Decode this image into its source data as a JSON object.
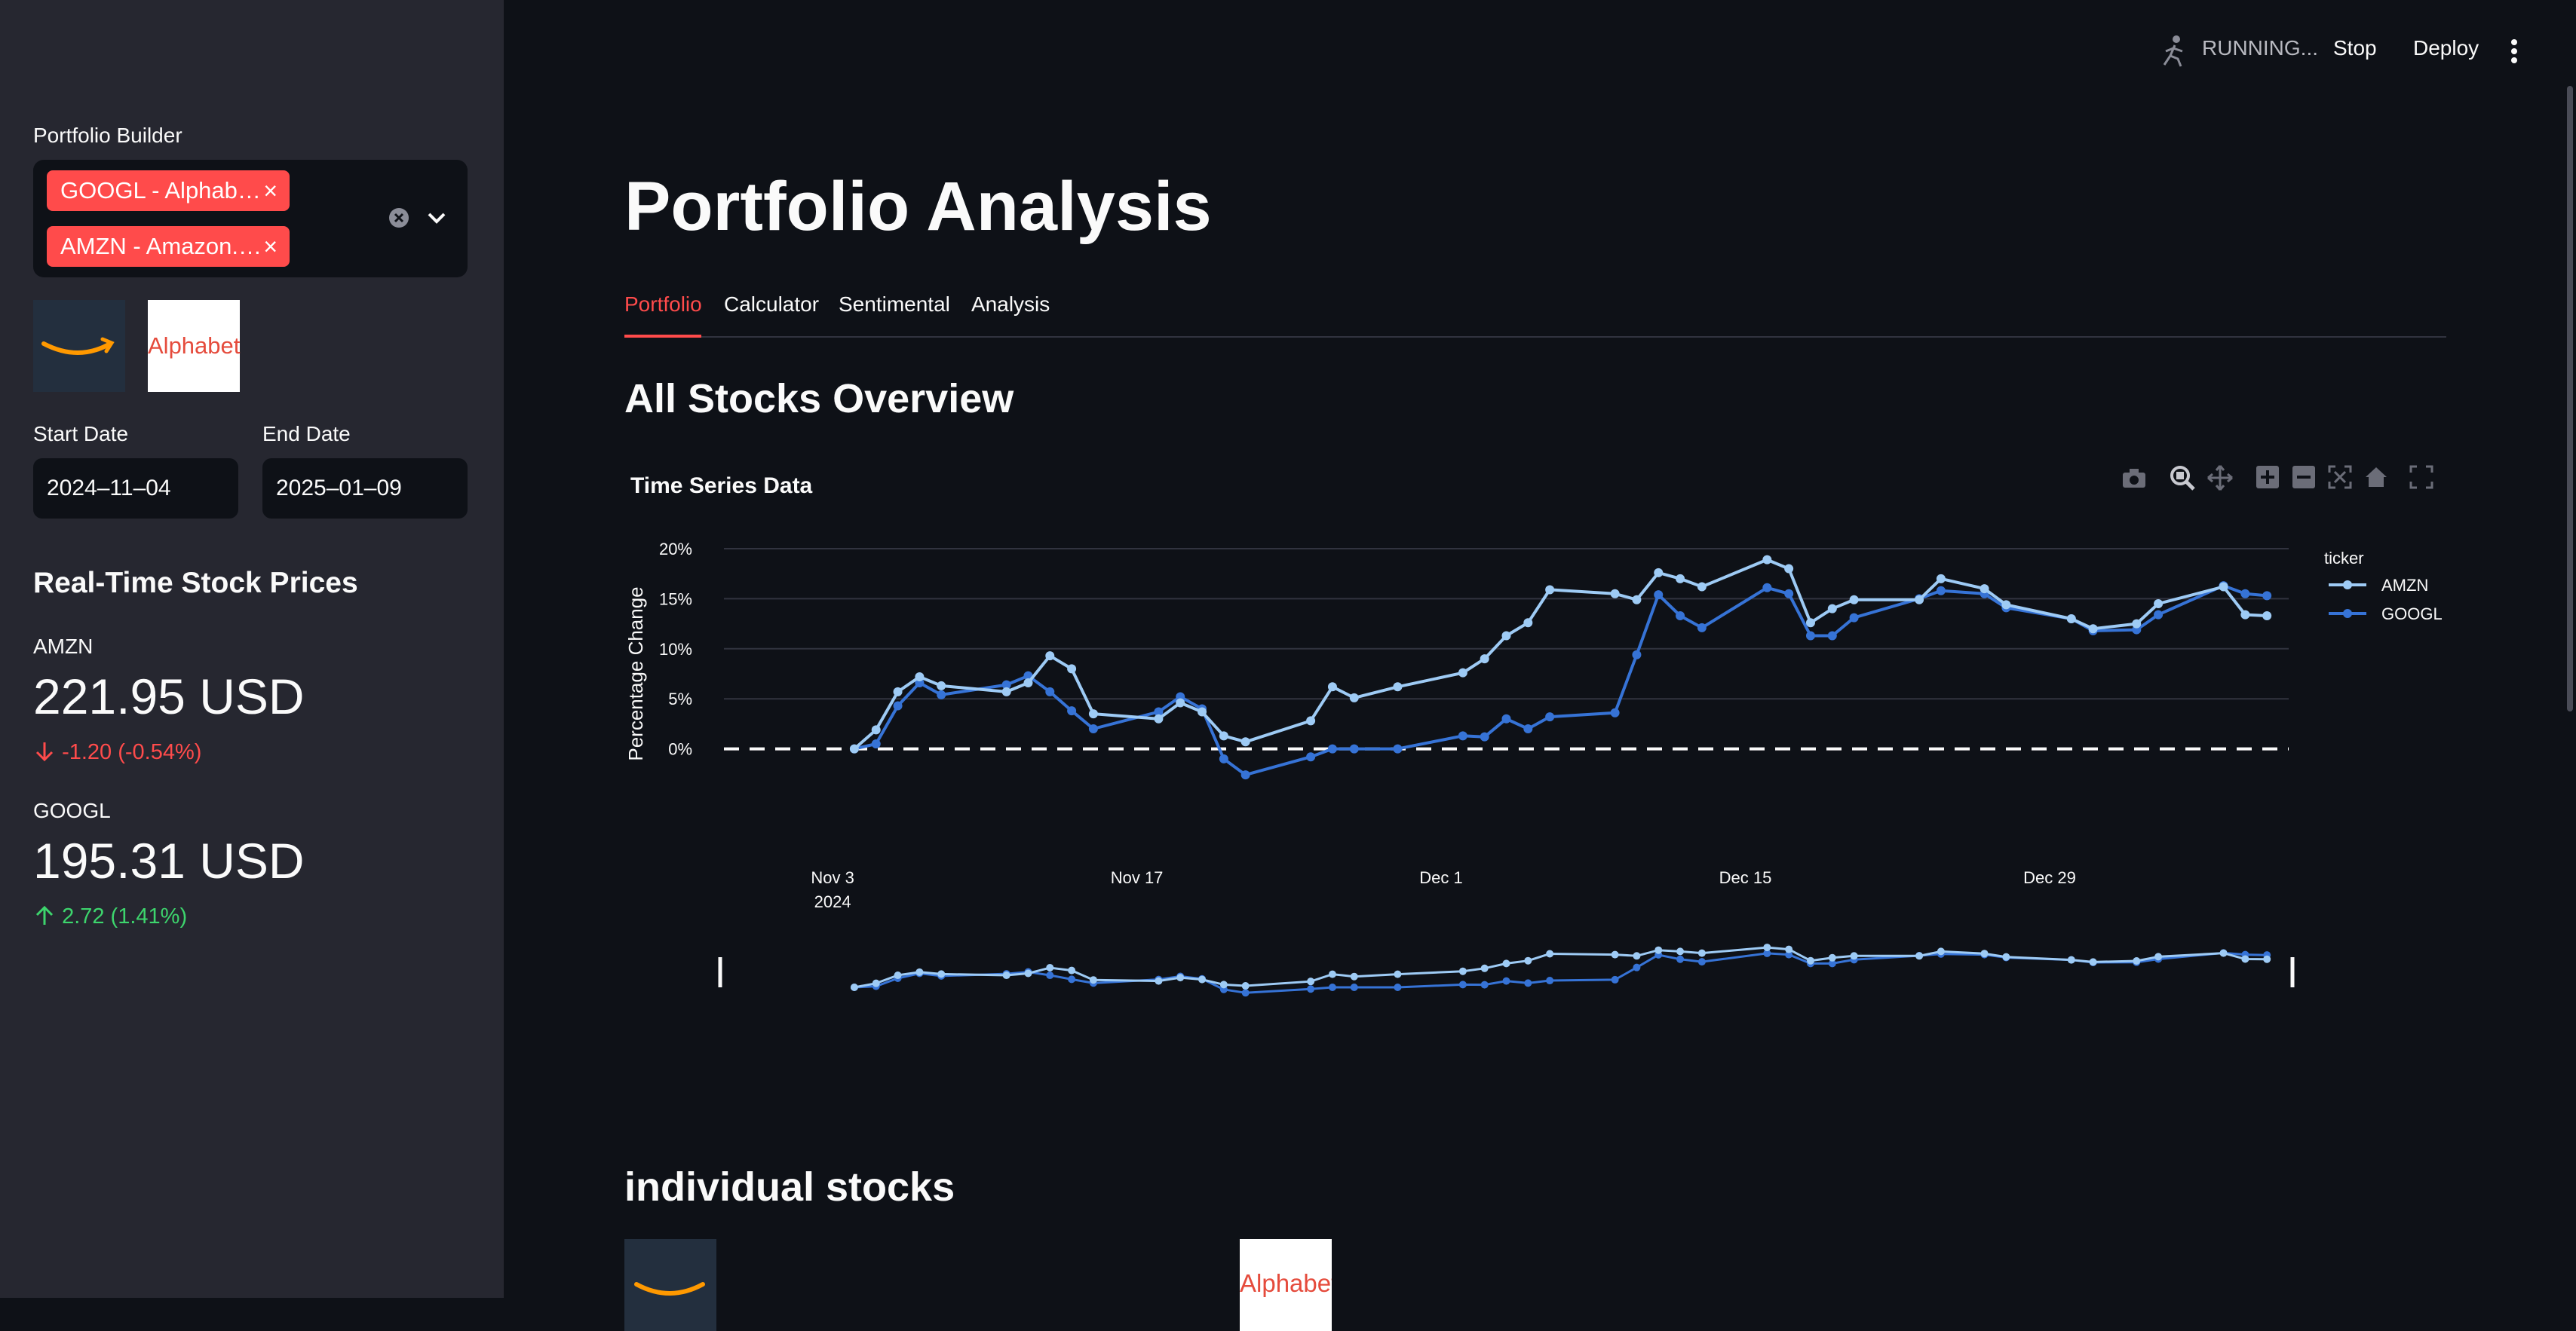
{
  "sidebar": {
    "portfolio_label": "Portfolio Builder",
    "selected": [
      "GOOGL - Alphab…",
      "AMZN - Amazon.…"
    ],
    "logo_amazon_icon": "amazon-logo",
    "logo_alphabet_text": "Alphabet",
    "start_date_label": "Start Date",
    "start_date_value": "2024–11–04",
    "end_date_label": "End Date",
    "end_date_value": "2025–01–09",
    "realtime_title": "Real-Time Stock Prices",
    "stocks": [
      {
        "ticker": "AMZN",
        "price": "221.95 USD",
        "delta": "-1.20 (-0.54%)",
        "direction": "down"
      },
      {
        "ticker": "GOOGL",
        "price": "195.31 USD",
        "delta": "2.72 (1.41%)",
        "direction": "up"
      }
    ]
  },
  "header": {
    "status": "RUNNING...",
    "stop": "Stop",
    "deploy": "Deploy"
  },
  "main": {
    "title": "Portfolio Analysis",
    "tabs": [
      "Portfolio",
      "Calculator",
      "Sentimental",
      "Analysis"
    ],
    "active_tab": 0,
    "section_title": "All Stocks Overview",
    "chart_title": "Time Series Data",
    "individual_title": "individual stocks",
    "individual_alphabet_text": "Alphabet"
  },
  "colors": {
    "accent": "#ff4b4b",
    "amzn_line": "#9ecbf5",
    "googl_line": "#3673d6",
    "up": "#3dd56d",
    "down": "#ff4b4b"
  },
  "chart_data": {
    "type": "line",
    "title": "Time Series Data",
    "ylabel": "Percentage Change",
    "xlabel": "",
    "legend_title": "ticker",
    "legend_position": "top-right",
    "ylim": [
      -5,
      20
    ],
    "yticks": [
      0,
      5,
      10,
      15,
      20
    ],
    "ytick_labels": [
      "0%",
      "5%",
      "10%",
      "15%",
      "20%"
    ],
    "xlim": [
      "2024-10-29",
      "2025-01-09"
    ],
    "xticks": [
      "2024-11-03",
      "2024-11-17",
      "2024-12-01",
      "2024-12-15",
      "2024-12-29"
    ],
    "xtick_labels": [
      "Nov 3\n2024",
      "Nov 17",
      "Dec 1",
      "Dec 15",
      "Dec 29"
    ],
    "baseline": 0,
    "series": [
      {
        "name": "AMZN",
        "points": [
          [
            "2024-11-04",
            0
          ],
          [
            "2024-11-05",
            1.9
          ],
          [
            "2024-11-06",
            5.7
          ],
          [
            "2024-11-07",
            7.2
          ],
          [
            "2024-11-08",
            6.3
          ],
          [
            "2024-11-11",
            5.7
          ],
          [
            "2024-11-12",
            6.6
          ],
          [
            "2024-11-13",
            9.3
          ],
          [
            "2024-11-14",
            8.0
          ],
          [
            "2024-11-15",
            3.5
          ],
          [
            "2024-11-18",
            3.0
          ],
          [
            "2024-11-19",
            4.6
          ],
          [
            "2024-11-20",
            3.7
          ],
          [
            "2024-11-21",
            1.3
          ],
          [
            "2024-11-22",
            0.7
          ],
          [
            "2024-11-25",
            2.8
          ],
          [
            "2024-11-26",
            6.2
          ],
          [
            "2024-11-27",
            5.1
          ],
          [
            "2024-11-29",
            6.2
          ],
          [
            "2024-12-02",
            7.6
          ],
          [
            "2024-12-03",
            9.0
          ],
          [
            "2024-12-04",
            11.3
          ],
          [
            "2024-12-05",
            12.6
          ],
          [
            "2024-12-06",
            15.9
          ],
          [
            "2024-12-09",
            15.5
          ],
          [
            "2024-12-10",
            14.9
          ],
          [
            "2024-12-11",
            17.6
          ],
          [
            "2024-12-12",
            17.0
          ],
          [
            "2024-12-13",
            16.2
          ],
          [
            "2024-12-16",
            18.9
          ],
          [
            "2024-12-17",
            18.0
          ],
          [
            "2024-12-18",
            12.6
          ],
          [
            "2024-12-19",
            14.0
          ],
          [
            "2024-12-20",
            14.9
          ],
          [
            "2024-12-23",
            14.9
          ],
          [
            "2024-12-24",
            17.0
          ],
          [
            "2024-12-26",
            16.0
          ],
          [
            "2024-12-27",
            14.4
          ],
          [
            "2024-12-30",
            13.0
          ],
          [
            "2024-12-31",
            12.0
          ],
          [
            "2025-01-02",
            12.5
          ],
          [
            "2025-01-03",
            14.5
          ],
          [
            "2025-01-06",
            16.2
          ],
          [
            "2025-01-07",
            13.4
          ],
          [
            "2025-01-08",
            13.3
          ]
        ]
      },
      {
        "name": "GOOGL",
        "points": [
          [
            "2024-11-04",
            0
          ],
          [
            "2024-11-05",
            0.5
          ],
          [
            "2024-11-06",
            4.3
          ],
          [
            "2024-11-07",
            6.6
          ],
          [
            "2024-11-08",
            5.4
          ],
          [
            "2024-11-11",
            6.4
          ],
          [
            "2024-11-12",
            7.3
          ],
          [
            "2024-11-13",
            5.7
          ],
          [
            "2024-11-14",
            3.8
          ],
          [
            "2024-11-15",
            2.0
          ],
          [
            "2024-11-18",
            3.7
          ],
          [
            "2024-11-19",
            5.2
          ],
          [
            "2024-11-20",
            4.0
          ],
          [
            "2024-11-21",
            -1.0
          ],
          [
            "2024-11-22",
            -2.6
          ],
          [
            "2024-11-25",
            -0.8
          ],
          [
            "2024-11-26",
            0
          ],
          [
            "2024-11-27",
            0
          ],
          [
            "2024-11-29",
            0
          ],
          [
            "2024-12-02",
            1.3
          ],
          [
            "2024-12-03",
            1.2
          ],
          [
            "2024-12-04",
            3.0
          ],
          [
            "2024-12-05",
            2.0
          ],
          [
            "2024-12-06",
            3.2
          ],
          [
            "2024-12-09",
            3.6
          ],
          [
            "2024-12-10",
            9.4
          ],
          [
            "2024-12-11",
            15.4
          ],
          [
            "2024-12-12",
            13.3
          ],
          [
            "2024-12-13",
            12.1
          ],
          [
            "2024-12-16",
            16.1
          ],
          [
            "2024-12-17",
            15.5
          ],
          [
            "2024-12-18",
            11.3
          ],
          [
            "2024-12-19",
            11.3
          ],
          [
            "2024-12-20",
            13.1
          ],
          [
            "2024-12-23",
            15.0
          ],
          [
            "2024-12-24",
            15.8
          ],
          [
            "2024-12-26",
            15.5
          ],
          [
            "2024-12-27",
            14.1
          ],
          [
            "2024-12-30",
            13.0
          ],
          [
            "2024-12-31",
            11.8
          ],
          [
            "2025-01-02",
            11.9
          ],
          [
            "2025-01-03",
            13.4
          ],
          [
            "2025-01-06",
            16.3
          ],
          [
            "2025-01-07",
            15.5
          ],
          [
            "2025-01-08",
            15.3
          ]
        ]
      }
    ]
  }
}
